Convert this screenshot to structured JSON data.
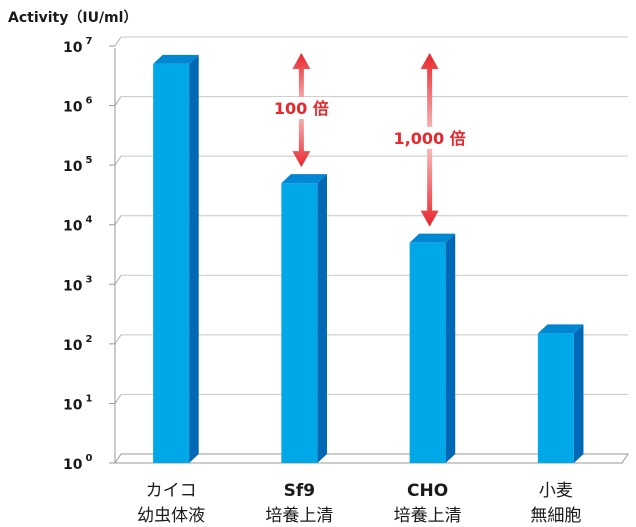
{
  "chart_data": {
    "type": "bar",
    "style": "3d",
    "scale": "log",
    "ylabel": "Activity（IU/ml）",
    "ylim": [
      1,
      10000000
    ],
    "y_ticks": [
      {
        "base": "10",
        "exp": "0"
      },
      {
        "base": "10",
        "exp": "1"
      },
      {
        "base": "10",
        "exp": "2"
      },
      {
        "base": "10",
        "exp": "3"
      },
      {
        "base": "10",
        "exp": "4"
      },
      {
        "base": "10",
        "exp": "5"
      },
      {
        "base": "10",
        "exp": "6"
      },
      {
        "base": "10",
        "exp": "7"
      }
    ],
    "categories": [
      {
        "line1": "カイコ",
        "line2": "幼虫体液"
      },
      {
        "line1": "Sf9",
        "line2": "培養上清"
      },
      {
        "line1": "CHO",
        "line2": "培養上清"
      },
      {
        "line1": "小麦",
        "line2": "無細胞"
      }
    ],
    "values": [
      5000000,
      50000,
      5000,
      150
    ],
    "grid": true,
    "bar_color": "#00a8e8",
    "bar_side_color": "#0068b5",
    "bar_top_color": "#0087d2",
    "annotations": [
      {
        "label": "100 倍",
        "bar": 1,
        "from": 10000000,
        "to": 50000
      },
      {
        "label": "1,000 倍",
        "bar": 2,
        "from": 10000000,
        "to": 5000
      }
    ],
    "annotation_color": "#e8262c"
  }
}
